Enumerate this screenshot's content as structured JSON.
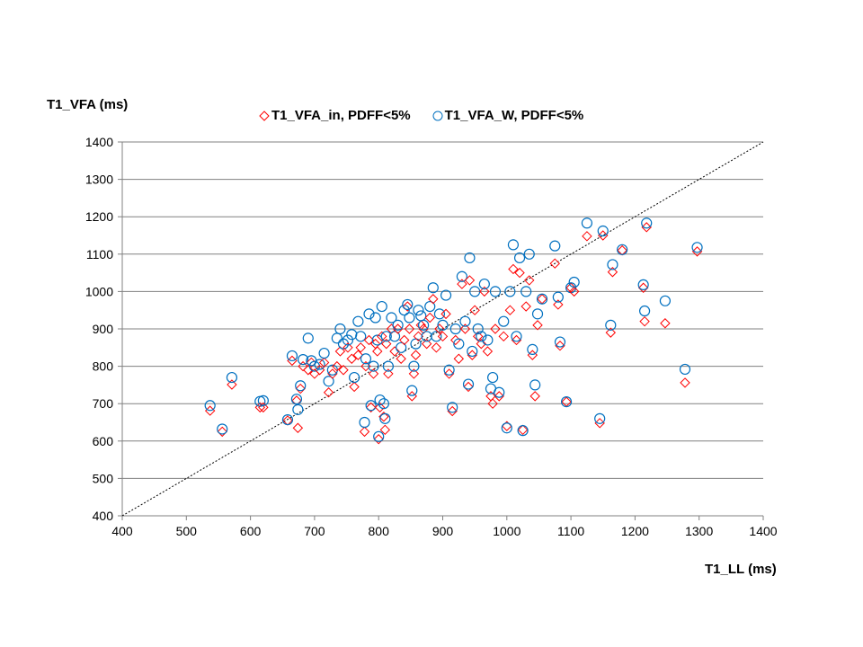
{
  "chart_data": {
    "type": "scatter",
    "title": "",
    "xlabel": "T1_LL (ms)",
    "ylabel": "T1_VFA (ms)",
    "xlim": [
      400,
      1400
    ],
    "ylim": [
      400,
      1400
    ],
    "xticks": [
      "400",
      "500",
      "600",
      "700",
      "800",
      "900",
      "1000",
      "1100",
      "1200",
      "1300",
      "1400"
    ],
    "yticks": [
      "400",
      "500",
      "600",
      "700",
      "800",
      "900",
      "1000",
      "1100",
      "1200",
      "1300",
      "1400"
    ],
    "grid": "horizontal",
    "legend_position": "top",
    "identity_line": true,
    "series": [
      {
        "name": "T1_VFA_in, PDFF<5%",
        "marker": "diamond",
        "color": "#ff0000"
      },
      {
        "name": "T1_VFA_W, PDFF<5%",
        "marker": "circle",
        "color": "#0070c0"
      }
    ],
    "points_x_in_w": [
      [
        537,
        681,
        695
      ],
      [
        556,
        625,
        632
      ],
      [
        571,
        751,
        770
      ],
      [
        615,
        690,
        706
      ],
      [
        620,
        690,
        708
      ],
      [
        658,
        655,
        657
      ],
      [
        665,
        815,
        828
      ],
      [
        672,
        708,
        712
      ],
      [
        674,
        635,
        684
      ],
      [
        678,
        740,
        748
      ],
      [
        682,
        800,
        818
      ],
      [
        690,
        790,
        875
      ],
      [
        695,
        810,
        815
      ],
      [
        700,
        780,
        800
      ],
      [
        708,
        790,
        805
      ],
      [
        715,
        810,
        835
      ],
      [
        722,
        730,
        760
      ],
      [
        728,
        780,
        790
      ],
      [
        735,
        800,
        875
      ],
      [
        740,
        840,
        900
      ],
      [
        745,
        790,
        860
      ],
      [
        752,
        850,
        870
      ],
      [
        758,
        820,
        885
      ],
      [
        762,
        745,
        770
      ],
      [
        768,
        830,
        920
      ],
      [
        772,
        850,
        880
      ],
      [
        778,
        625,
        650
      ],
      [
        780,
        800,
        820
      ],
      [
        785,
        870,
        940
      ],
      [
        788,
        690,
        695
      ],
      [
        792,
        780,
        800
      ],
      [
        795,
        860,
        930
      ],
      [
        798,
        840,
        870
      ],
      [
        800,
        605,
        612
      ],
      [
        802,
        690,
        710
      ],
      [
        805,
        880,
        960
      ],
      [
        808,
        665,
        700
      ],
      [
        810,
        630,
        660
      ],
      [
        812,
        860,
        880
      ],
      [
        815,
        780,
        800
      ],
      [
        820,
        900,
        930
      ],
      [
        825,
        840,
        880
      ],
      [
        830,
        900,
        910
      ],
      [
        835,
        820,
        850
      ],
      [
        840,
        870,
        950
      ],
      [
        845,
        960,
        965
      ],
      [
        848,
        900,
        930
      ],
      [
        852,
        720,
        735
      ],
      [
        855,
        780,
        800
      ],
      [
        858,
        830,
        860
      ],
      [
        862,
        880,
        950
      ],
      [
        866,
        910,
        935
      ],
      [
        870,
        900,
        910
      ],
      [
        875,
        860,
        880
      ],
      [
        880,
        930,
        960
      ],
      [
        885,
        980,
        1010
      ],
      [
        890,
        850,
        880
      ],
      [
        895,
        900,
        940
      ],
      [
        900,
        880,
        910
      ],
      [
        905,
        940,
        990
      ],
      [
        910,
        780,
        790
      ],
      [
        915,
        680,
        690
      ],
      [
        920,
        870,
        900
      ],
      [
        925,
        820,
        860
      ],
      [
        930,
        1020,
        1040
      ],
      [
        935,
        900,
        920
      ],
      [
        940,
        745,
        752
      ],
      [
        942,
        1030,
        1090
      ],
      [
        946,
        830,
        840
      ],
      [
        950,
        950,
        1000
      ],
      [
        955,
        880,
        900
      ],
      [
        960,
        860,
        880
      ],
      [
        965,
        1000,
        1020
      ],
      [
        970,
        840,
        870
      ],
      [
        975,
        720,
        740
      ],
      [
        978,
        700,
        770
      ],
      [
        982,
        900,
        1000
      ],
      [
        988,
        720,
        730
      ],
      [
        995,
        880,
        920
      ],
      [
        1000,
        640,
        635
      ],
      [
        1005,
        950,
        1000
      ],
      [
        1010,
        1060,
        1125
      ],
      [
        1015,
        870,
        880
      ],
      [
        1020,
        1050,
        1090
      ],
      [
        1025,
        630,
        628
      ],
      [
        1030,
        960,
        1000
      ],
      [
        1035,
        1030,
        1100
      ],
      [
        1040,
        830,
        845
      ],
      [
        1044,
        720,
        750
      ],
      [
        1048,
        910,
        940
      ],
      [
        1055,
        980,
        980
      ],
      [
        1075,
        1075,
        1122
      ],
      [
        1080,
        965,
        985
      ],
      [
        1083,
        855,
        865
      ],
      [
        1093,
        705,
        705
      ],
      [
        1100,
        1010,
        1010
      ],
      [
        1105,
        1000,
        1025
      ],
      [
        1125,
        1148,
        1183
      ],
      [
        1145,
        648,
        660
      ],
      [
        1150,
        1150,
        1162
      ],
      [
        1162,
        890,
        910
      ],
      [
        1165,
        1052,
        1072
      ],
      [
        1180,
        1110,
        1112
      ],
      [
        1213,
        1010,
        1018
      ],
      [
        1215,
        920,
        948
      ],
      [
        1218,
        1172,
        1183
      ],
      [
        1247,
        915,
        975
      ],
      [
        1278,
        756,
        792
      ],
      [
        1297,
        1107,
        1118
      ]
    ]
  }
}
